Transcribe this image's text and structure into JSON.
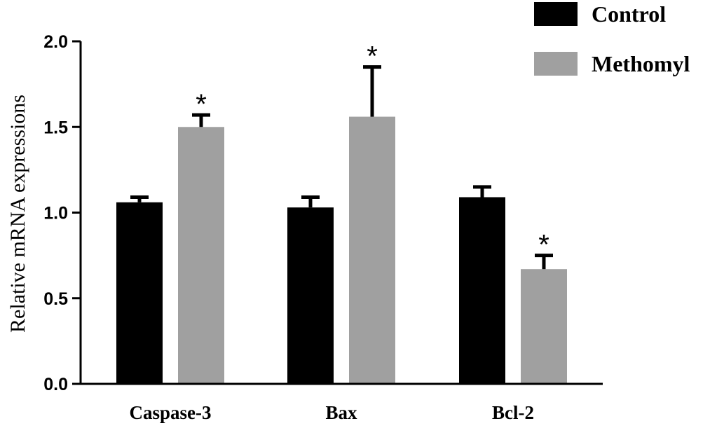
{
  "chart_data": {
    "type": "bar",
    "ylabel": "Relative mRNA expressions",
    "xlabel": "",
    "ylim": [
      0,
      2.0
    ],
    "yticks": [
      "0.0",
      "0.5",
      "1.0",
      "1.5",
      "2.0"
    ],
    "categories": [
      "Caspase-3",
      "Bax",
      "Bcl-2"
    ],
    "series": [
      {
        "name": "Control",
        "color": "#000000",
        "values": [
          1.06,
          1.03,
          1.09
        ],
        "errors": [
          0.03,
          0.06,
          0.06
        ]
      },
      {
        "name": "Methomyl",
        "color": "#a0a0a0",
        "values": [
          1.5,
          1.56,
          0.67
        ],
        "errors": [
          0.07,
          0.29,
          0.08
        ]
      }
    ],
    "annotations": [
      {
        "category": "Caspase-3",
        "series": "Methomyl",
        "text": "*"
      },
      {
        "category": "Bax",
        "series": "Methomyl",
        "text": "*"
      },
      {
        "category": "Bcl-2",
        "series": "Methomyl",
        "text": "*"
      }
    ],
    "legend_position": "top-right",
    "grid": false
  }
}
